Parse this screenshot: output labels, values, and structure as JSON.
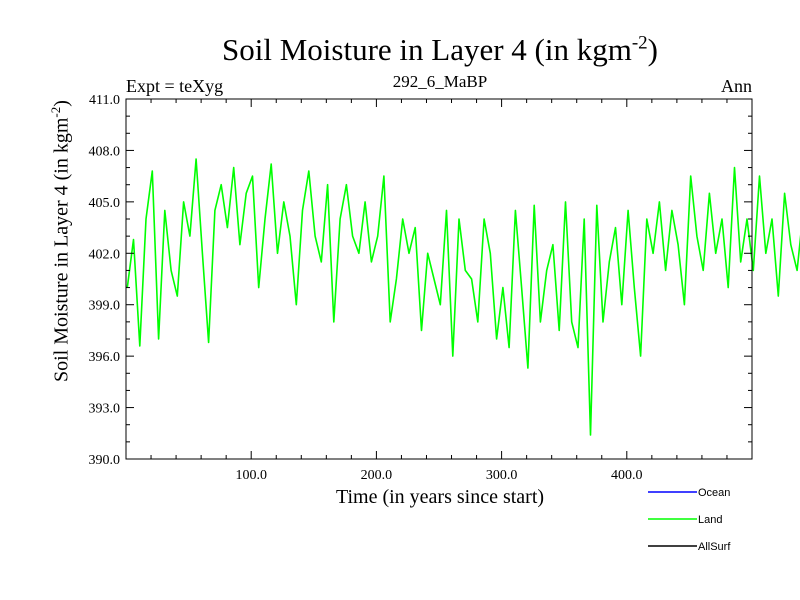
{
  "chart_data": {
    "type": "line",
    "title": "Soil Moisture in Layer 4 (in kgm",
    "title_sup": "-2",
    "title_end": ")",
    "subtitle_left": "Expt = teXyg",
    "subtitle_center": "292_6_MaBP",
    "subtitle_right": "Ann",
    "xlabel": "Time (in years since start)",
    "ylabel": "Soil Moisture in Layer 4 (in kgm",
    "ylabel_sup": "-2",
    "ylabel_end": ")",
    "xlim": [
      0,
      500
    ],
    "ylim": [
      390.0,
      411.0
    ],
    "x_ticks": [
      100,
      200,
      300,
      400
    ],
    "x_tick_labels": [
      "100.0",
      "200.0",
      "300.0",
      "400.0"
    ],
    "y_ticks": [
      390,
      393,
      396,
      399,
      402,
      405,
      408,
      411
    ],
    "y_tick_labels": [
      "390.0",
      "393.0",
      "396.0",
      "399.0",
      "402.0",
      "405.0",
      "408.0",
      "411.0"
    ],
    "legend": [
      {
        "name": "Ocean",
        "color": "#0000ff"
      },
      {
        "name": "Land",
        "color": "#00ff00"
      },
      {
        "name": "AllSurf",
        "color": "#000000"
      }
    ],
    "series": [
      {
        "name": "Land",
        "color": "#00ff00",
        "x_start": 1,
        "x_step": 5,
        "values": [
          400.0,
          402.8,
          396.6,
          404.0,
          406.8,
          397.0,
          404.5,
          401.0,
          399.5,
          405.0,
          403.0,
          407.5,
          402.0,
          396.8,
          404.5,
          406.0,
          403.5,
          407.0,
          402.5,
          405.5,
          406.5,
          400.0,
          404.0,
          407.2,
          402.0,
          405.0,
          403.0,
          399.0,
          404.5,
          406.8,
          403.0,
          401.5,
          406.0,
          398.0,
          404.0,
          406.0,
          403.0,
          402.0,
          405.0,
          401.5,
          403.0,
          406.5,
          398.0,
          400.5,
          404.0,
          402.0,
          403.5,
          397.5,
          402.0,
          400.5,
          399.0,
          404.5,
          396.0,
          404.0,
          401.0,
          400.5,
          398.0,
          404.0,
          402.0,
          397.0,
          400.0,
          396.5,
          404.5,
          400.0,
          395.3,
          404.8,
          398.0,
          401.0,
          402.5,
          397.5,
          405.0,
          398.0,
          396.5,
          404.0,
          391.4,
          404.8,
          398.0,
          401.5,
          403.5,
          399.0,
          404.5,
          400.0,
          396.0,
          404.0,
          402.0,
          405.0,
          401.0,
          404.5,
          402.5,
          399.0,
          406.5,
          403.0,
          401.0,
          405.5,
          402.0,
          404.0,
          400.0,
          407.0,
          401.5,
          404.0,
          401.0,
          406.5,
          402.0,
          404.0,
          399.5,
          405.5,
          402.5,
          401.0,
          404.5,
          401.0,
          403.5,
          406.0,
          400.0,
          404.0,
          398.0,
          404.5,
          401.5,
          403.0,
          400.0,
          404.0,
          402.0,
          406.5,
          401.0,
          404.5,
          402.0,
          398.0,
          405.5,
          400.0,
          404.0,
          401.0,
          406.0,
          402.5,
          400.5,
          404.0,
          401.0,
          405.5,
          397.0,
          404.5,
          400.0,
          403.0,
          399.5,
          403.5,
          396.5,
          404.0,
          401.5,
          403.0,
          398.0,
          404.5,
          401.0,
          403.0,
          396.0,
          404.0,
          401.0,
          403.0,
          399.5,
          402.5,
          404.5,
          398.0,
          405.5,
          401.0,
          403.5,
          410.2,
          403.0,
          406.0,
          401.0,
          404.5,
          402.0,
          408.5,
          400.0,
          405.0,
          402.5,
          404.0,
          398.0,
          407.0,
          401.5,
          404.0,
          399.5,
          403.5,
          401.0,
          405.5,
          402.0,
          404.5,
          399.0,
          404.0,
          402.0,
          405.0,
          401.5,
          403.5,
          400.0,
          405.0,
          402.0,
          403.5,
          396.0,
          404.5,
          401.5,
          403.0,
          400.0,
          404.5,
          394.5,
          403.5,
          400.5,
          404.0,
          398.5,
          405.0,
          401.0,
          403.5,
          397.0,
          401.5,
          401.0,
          400.0
        ]
      }
    ],
    "grid": false,
    "legend_position": "bottom-right"
  }
}
